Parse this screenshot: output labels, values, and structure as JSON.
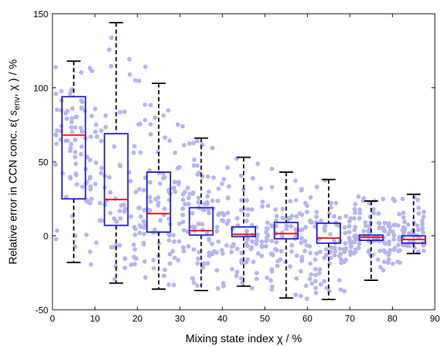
{
  "chart_data": {
    "type": "box",
    "xlabel": "Mixing state index χ  /  %",
    "ylabel": {
      "prefix": "Relative error in CCN conc.  ε( ",
      "s": "s",
      "sub": "env",
      "suffix": ",  χ )  /  %"
    },
    "xlim": [
      0,
      90
    ],
    "ylim": [
      -50,
      150
    ],
    "xticks": [
      0,
      10,
      20,
      30,
      40,
      50,
      60,
      70,
      80,
      90
    ],
    "yticks": [
      -50,
      0,
      50,
      100,
      150
    ],
    "colors": {
      "scatter": "#b4b4ef",
      "box": "#1f1fcf",
      "median": "#e8171d",
      "whisker": "#000000",
      "axis": "#000000"
    },
    "boxes": [
      {
        "center": 5,
        "whisker_low": -18,
        "q1": 25,
        "median": 68,
        "q3": 94,
        "whisker_high": 118
      },
      {
        "center": 15,
        "whisker_low": -32,
        "q1": 7,
        "median": 24.5,
        "q3": 69,
        "whisker_high": 144
      },
      {
        "center": 25,
        "whisker_low": -36,
        "q1": 2.5,
        "median": 15,
        "q3": 43,
        "whisker_high": 103
      },
      {
        "center": 35,
        "whisker_low": -37,
        "q1": 0.5,
        "median": 3.5,
        "q3": 19,
        "whisker_high": 66
      },
      {
        "center": 45,
        "whisker_low": -34,
        "q1": -0.5,
        "median": 1,
        "q3": 6,
        "whisker_high": 53
      },
      {
        "center": 55,
        "whisker_low": -42,
        "q1": -2,
        "median": 1.5,
        "q3": 9,
        "whisker_high": 43
      },
      {
        "center": 65,
        "whisker_low": -43,
        "q1": -5,
        "median": -1.5,
        "q3": 8.5,
        "whisker_high": 38
      },
      {
        "center": 75,
        "whisker_low": -30,
        "q1": -3,
        "median": -1,
        "q3": 0.5,
        "whisker_high": 23.5
      },
      {
        "center": 85,
        "whisker_low": -12,
        "q1": -5,
        "median": -2.5,
        "q3": 0,
        "whisker_high": 28
      }
    ]
  }
}
